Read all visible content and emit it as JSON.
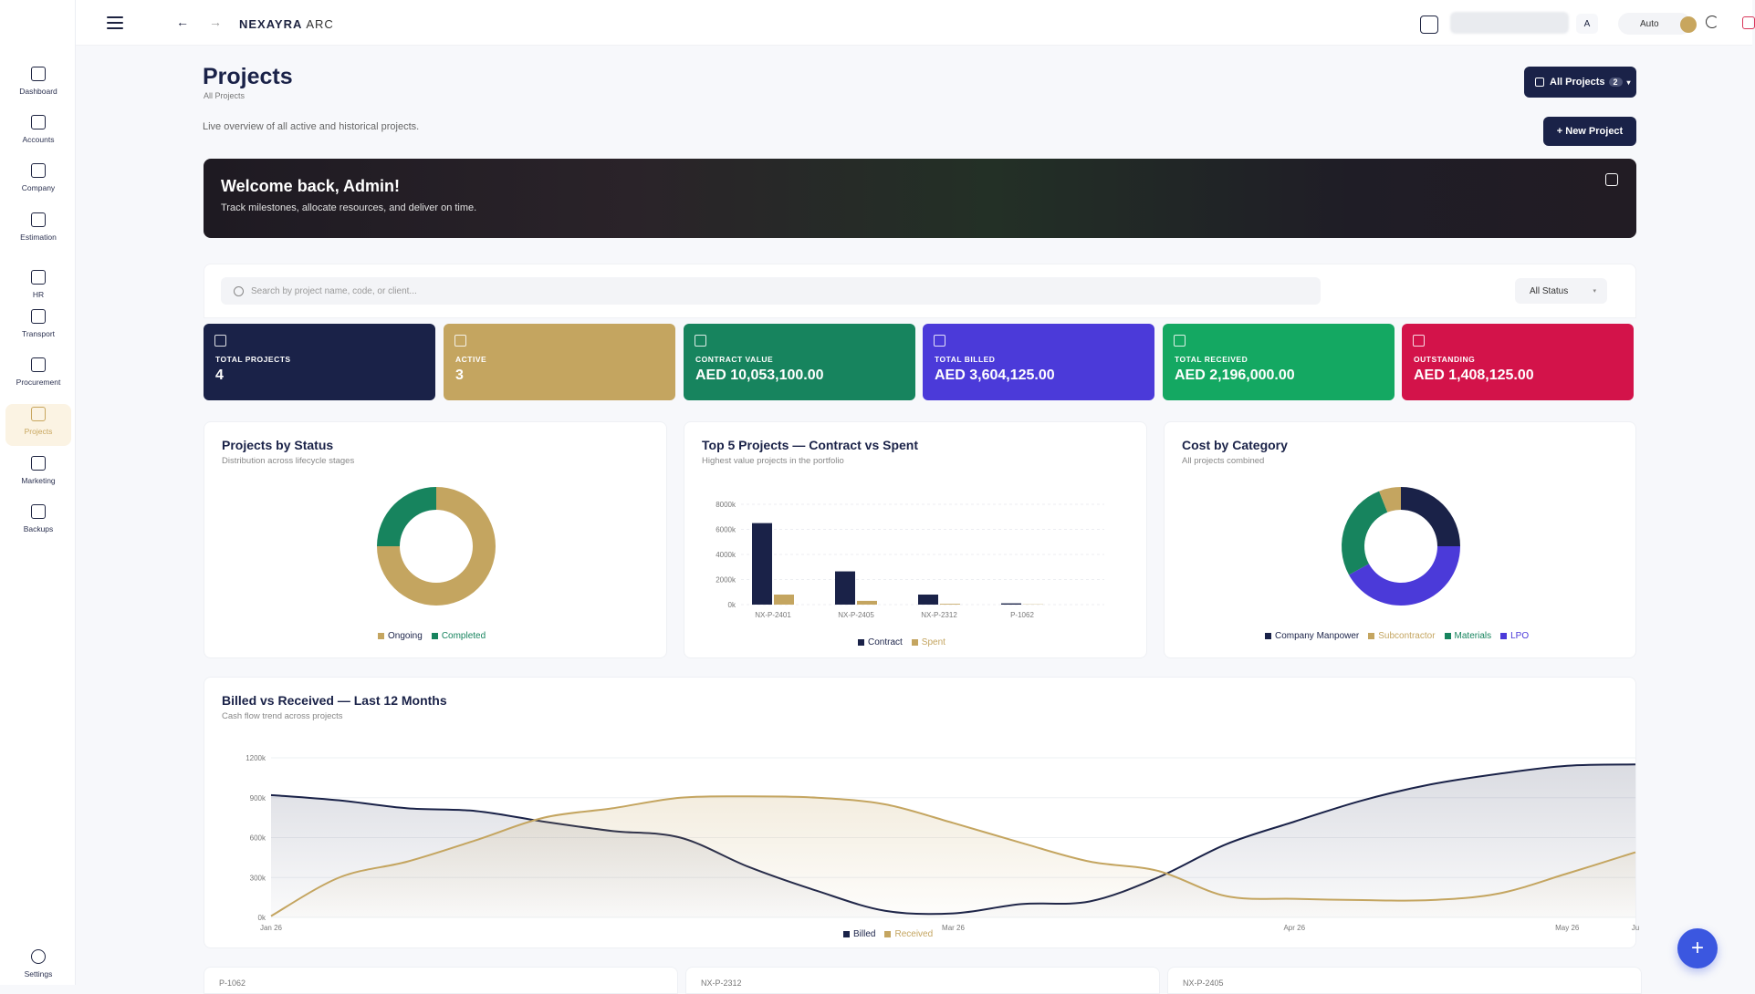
{
  "sidebar": {
    "items": [
      {
        "label": "Dashboard",
        "icon": "square-icon"
      },
      {
        "label": "Accounts",
        "icon": "square-icon"
      },
      {
        "label": "Company",
        "icon": "square-icon"
      },
      {
        "label": "Estimation",
        "icon": "square-icon"
      },
      {
        "label": "HR",
        "icon": "square-icon"
      },
      {
        "label": "Transport",
        "icon": "square-icon"
      },
      {
        "label": "Procurement",
        "icon": "square-icon"
      },
      {
        "label": "Projects",
        "icon": "square-icon",
        "active": true
      },
      {
        "label": "Marketing",
        "icon": "square-icon"
      },
      {
        "label": "Backups",
        "icon": "square-icon"
      }
    ],
    "settings_label": "Settings"
  },
  "topbar": {
    "back": "←",
    "forward": "→",
    "brand": "NEXAYRA",
    "brand_sub": "ARC",
    "avatar_letter": "A",
    "theme_label": "Auto"
  },
  "header": {
    "title": "Projects",
    "breadcrumb": "All Projects",
    "description": "Live overview of all active and historical projects.",
    "all_projects_label": "All Projects",
    "all_projects_count": "2",
    "new_project_label": "+ New Project"
  },
  "welcome": {
    "title": "Welcome back, Admin!",
    "subtitle": "Track milestones, allocate resources, and deliver on time."
  },
  "filters": {
    "search_placeholder": "Search by project name, code, or client...",
    "status_label": "All Status"
  },
  "stats": [
    {
      "label": "TOTAL PROJECTS",
      "value": "4",
      "color": "#1a2248"
    },
    {
      "label": "ACTIVE",
      "value": "3",
      "color": "#c4a560"
    },
    {
      "label": "CONTRACT VALUE",
      "value": "AED 10,053,100.00",
      "color": "#17845e"
    },
    {
      "label": "TOTAL BILLED",
      "value": "AED 3,604,125.00",
      "color": "#4b3ad9"
    },
    {
      "label": "TOTAL RECEIVED",
      "value": "AED 2,196,000.00",
      "color": "#14a862"
    },
    {
      "label": "OUTSTANDING",
      "value": "AED 1,408,125.00",
      "color": "#d3134a"
    }
  ],
  "chart_data": [
    {
      "type": "pie",
      "title": "Projects by Status",
      "subtitle": "Distribution across lifecycle stages",
      "categories": [
        "Ongoing",
        "Completed"
      ],
      "values": [
        3,
        1
      ],
      "colors": [
        "#c4a560",
        "#17845e"
      ]
    },
    {
      "type": "bar",
      "title": "Top 5 Projects — Contract vs Spent",
      "subtitle": "Highest value projects in the portfolio",
      "categories": [
        "NX-P-2401",
        "NX-P-2405",
        "NX-P-2312",
        "P-1062"
      ],
      "series": [
        {
          "name": "Contract",
          "values": [
            6500,
            2650,
            800,
            100
          ],
          "color": "#1a2248"
        },
        {
          "name": "Spent",
          "values": [
            800,
            300,
            60,
            20
          ],
          "color": "#c4a560"
        }
      ],
      "yticks": [
        "0k",
        "2000k",
        "4000k",
        "6000k",
        "8000k"
      ],
      "ylim": [
        0,
        8000
      ]
    },
    {
      "type": "pie",
      "title": "Cost by Category",
      "subtitle": "All projects combined",
      "categories": [
        "Company Manpower",
        "Subcontractor",
        "Materials",
        "LPO"
      ],
      "values": [
        25,
        6,
        27,
        42
      ],
      "colors": [
        "#1a2248",
        "#c4a560",
        "#17845e",
        "#4b3ad9"
      ],
      "order": [
        "Company Manpower",
        "LPO",
        "Materials",
        "Subcontractor"
      ]
    },
    {
      "type": "area",
      "title": "Billed vs Received — Last 12 Months",
      "subtitle": "Cash flow trend across projects",
      "x": [
        0,
        0.5,
        1,
        1.5,
        2,
        2.5,
        3,
        3.5,
        4,
        4.5,
        5,
        5.5,
        6,
        6.5,
        7,
        7.5,
        8,
        8.5,
        9,
        9.5,
        10
      ],
      "xticks": [
        {
          "v": 0,
          "label": "Jan 26"
        },
        {
          "v": 5,
          "label": "Mar 26"
        },
        {
          "v": 7.5,
          "label": "Apr 26"
        },
        {
          "v": 9.5,
          "label": "May 26"
        },
        {
          "v": 10,
          "label": "Ju"
        }
      ],
      "series": [
        {
          "name": "Billed",
          "values": [
            920,
            880,
            820,
            800,
            720,
            650,
            600,
            380,
            200,
            50,
            30,
            100,
            120,
            300,
            550,
            720,
            880,
            1000,
            1080,
            1140,
            1150
          ],
          "color": "#1a2248"
        },
        {
          "name": "Received",
          "values": [
            10,
            300,
            420,
            580,
            750,
            820,
            900,
            910,
            900,
            850,
            710,
            560,
            420,
            350,
            160,
            140,
            130,
            130,
            180,
            330,
            490
          ],
          "color": "#c4a560"
        }
      ],
      "yticks": [
        "0k",
        "300k",
        "600k",
        "900k",
        "1200k"
      ],
      "ylim": [
        0,
        1200
      ]
    }
  ],
  "bottom_cards": [
    "P-1062",
    "NX-P-2312",
    "NX-P-2405"
  ]
}
